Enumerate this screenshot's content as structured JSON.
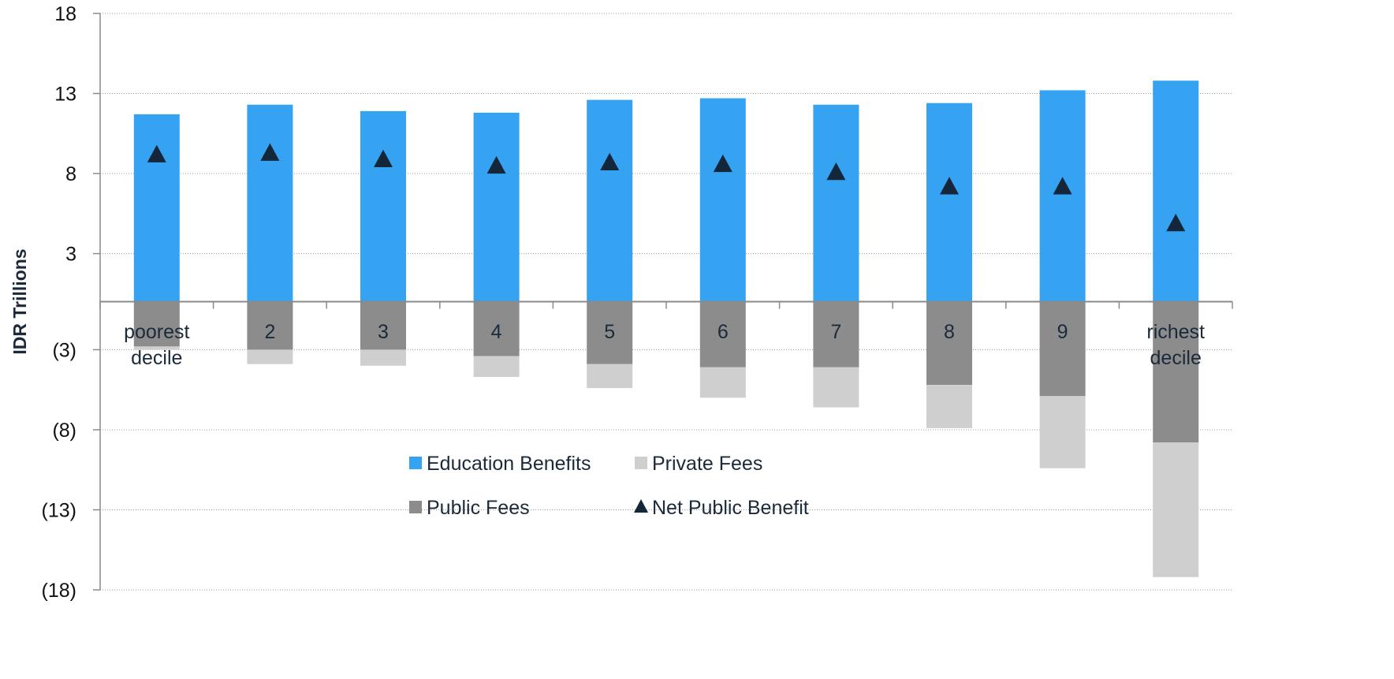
{
  "chart_data": {
    "type": "bar",
    "title": "",
    "xlabel": "",
    "ylabel": "IDR Trillions",
    "ylim": [
      -18,
      18
    ],
    "yticks": [
      18,
      13,
      8,
      3,
      -3,
      -8,
      -13,
      -18
    ],
    "ytick_labels": [
      "18",
      "13",
      "8",
      "3",
      "(3)",
      "(8)",
      "(13)",
      "(18)"
    ],
    "grid": true,
    "stacked": true,
    "categories": [
      "poorest decile",
      "2",
      "3",
      "4",
      "5",
      "6",
      "7",
      "8",
      "9",
      "richest decile"
    ],
    "category_lines": [
      [
        "poorest",
        "decile"
      ],
      [
        "2"
      ],
      [
        "3"
      ],
      [
        "4"
      ],
      [
        "5"
      ],
      [
        "6"
      ],
      [
        "7"
      ],
      [
        "8"
      ],
      [
        "9"
      ],
      [
        "richest",
        "decile"
      ]
    ],
    "series": [
      {
        "name": "Education Benefits",
        "kind": "bar",
        "color": "#36a2f2",
        "values": [
          11.7,
          12.3,
          11.9,
          11.8,
          12.6,
          12.7,
          12.3,
          12.4,
          13.2,
          13.8
        ]
      },
      {
        "name": "Public Fees",
        "kind": "bar",
        "color": "#8c8c8c",
        "values": [
          -2.8,
          -3.0,
          -3.0,
          -3.4,
          -3.9,
          -4.1,
          -4.1,
          -5.2,
          -5.9,
          -8.8
        ]
      },
      {
        "name": "Private Fees",
        "kind": "bar",
        "color": "#cfcfcf",
        "values": [
          -0.2,
          -0.9,
          -1.0,
          -1.3,
          -1.5,
          -1.9,
          -2.5,
          -2.7,
          -4.5,
          -8.4
        ]
      },
      {
        "name": "Net Public Benefit",
        "kind": "marker",
        "color": "#14263a",
        "values": [
          9.2,
          9.3,
          8.9,
          8.5,
          8.7,
          8.6,
          8.1,
          7.2,
          7.2,
          4.9
        ]
      }
    ],
    "legend": {
      "placement": "center-bottom",
      "columns": 2,
      "order": [
        "Education Benefits",
        "Private Fees",
        "Public Fees",
        "Net Public Benefit"
      ]
    }
  }
}
